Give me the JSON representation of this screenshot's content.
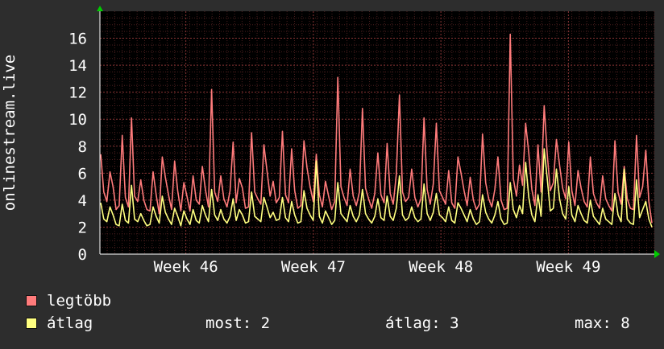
{
  "chart_data": {
    "type": "line",
    "ylabel": "onlinestream.live",
    "ylim": [
      0,
      18
    ],
    "yticks": [
      0,
      2,
      4,
      6,
      8,
      10,
      12,
      14,
      16
    ],
    "xlim": [
      0,
      100
    ],
    "x_ticks": [
      {
        "label": "Week 46",
        "x": 15.5
      },
      {
        "label": "Week 47",
        "x": 38.5
      },
      {
        "label": "Week 48",
        "x": 61.5
      },
      {
        "label": "Week 49",
        "x": 84.5
      }
    ],
    "grid": true,
    "series": [
      {
        "name": "legtöbb",
        "color": "#ff7b7b",
        "values": [
          7.4,
          4.6,
          3.9,
          6.1,
          5.0,
          3.3,
          3.6,
          8.8,
          4.2,
          3.5,
          10.1,
          4.3,
          3.9,
          5.5,
          4.0,
          3.3,
          3.2,
          6.1,
          4.4,
          3.0,
          7.2,
          5.7,
          4.4,
          3.3,
          6.9,
          4.7,
          3.2,
          5.3,
          4.3,
          3.2,
          5.8,
          4.0,
          3.7,
          6.5,
          4.8,
          3.5,
          12.2,
          4.6,
          3.9,
          5.8,
          4.1,
          3.5,
          4.7,
          8.3,
          3.8,
          5.6,
          4.9,
          3.4,
          3.5,
          9.0,
          4.6,
          4.1,
          3.7,
          8.1,
          6.2,
          4.3,
          5.4,
          3.8,
          4.2,
          9.1,
          4.4,
          3.8,
          7.8,
          4.7,
          3.4,
          3.6,
          8.4,
          6.4,
          5.0,
          3.9,
          7.4,
          4.4,
          3.5,
          5.4,
          4.3,
          3.3,
          3.9,
          13.1,
          5.0,
          4.2,
          3.6,
          6.3,
          4.3,
          3.6,
          4.6,
          10.8,
          4.9,
          4.1,
          3.4,
          4.5,
          7.5,
          4.4,
          3.8,
          8.2,
          4.5,
          3.7,
          5.9,
          11.8,
          4.6,
          3.9,
          4.2,
          6.3,
          4.2,
          3.5,
          4.1,
          10.1,
          4.8,
          3.7,
          5.2,
          9.7,
          4.7,
          4.2,
          3.7,
          6.2,
          3.8,
          3.4,
          7.2,
          6.0,
          4.7,
          3.6,
          5.7,
          4.0,
          3.3,
          3.7,
          8.9,
          5.3,
          4.1,
          3.5,
          4.8,
          7.2,
          4.0,
          3.3,
          3.4,
          16.3,
          5.6,
          4.3,
          6.6,
          5.1,
          9.7,
          7.5,
          4.8,
          3.6,
          8.1,
          4.6,
          11.0,
          7.4,
          4.7,
          5.3,
          8.5,
          6.6,
          4.9,
          4.1,
          8.3,
          4.7,
          3.6,
          6.2,
          4.9,
          3.9,
          3.5,
          7.2,
          4.5,
          3.8,
          3.4,
          5.8,
          4.1,
          3.6,
          3.2,
          8.4,
          4.6,
          3.7,
          6.5,
          4.1,
          3.4,
          3.3,
          8.8,
          4.2,
          5.0,
          7.7,
          3.9,
          2.3
        ]
      },
      {
        "name": "átlag",
        "color": "#ffff80",
        "values": [
          3.8,
          2.6,
          2.4,
          3.5,
          2.9,
          2.2,
          2.1,
          3.7,
          2.5,
          2.3,
          5.1,
          2.6,
          2.4,
          3.0,
          2.5,
          2.1,
          2.2,
          3.5,
          2.8,
          2.3,
          4.3,
          3.1,
          2.6,
          2.2,
          3.4,
          2.8,
          2.1,
          3.2,
          2.6,
          2.2,
          3.3,
          2.5,
          2.3,
          3.6,
          2.9,
          2.4,
          4.8,
          2.9,
          2.5,
          3.3,
          2.6,
          2.3,
          2.8,
          4.1,
          2.5,
          3.3,
          2.9,
          2.3,
          2.4,
          4.6,
          2.8,
          2.6,
          2.4,
          4.2,
          3.5,
          2.7,
          3.1,
          2.5,
          2.6,
          4.2,
          2.7,
          2.4,
          3.9,
          2.9,
          2.3,
          2.4,
          4.7,
          3.4,
          2.9,
          2.5,
          6.9,
          2.8,
          2.3,
          3.2,
          2.7,
          2.2,
          2.5,
          5.3,
          3.0,
          2.7,
          2.4,
          3.6,
          2.8,
          2.4,
          2.9,
          4.8,
          3.0,
          2.6,
          2.3,
          2.8,
          4.1,
          2.7,
          2.5,
          4.3,
          2.8,
          2.5,
          3.4,
          5.8,
          2.9,
          2.5,
          2.7,
          3.5,
          2.7,
          2.4,
          2.6,
          5.2,
          3.0,
          2.5,
          3.1,
          4.5,
          2.9,
          2.7,
          2.4,
          3.5,
          2.5,
          2.3,
          3.8,
          3.4,
          2.9,
          2.4,
          3.3,
          2.6,
          2.2,
          2.4,
          4.4,
          3.1,
          2.6,
          2.3,
          2.9,
          3.9,
          2.6,
          2.2,
          2.3,
          5.3,
          3.3,
          2.7,
          3.6,
          3.0,
          6.8,
          4.2,
          2.9,
          2.4,
          4.4,
          2.8,
          7.8,
          5.6,
          3.2,
          3.4,
          6.3,
          4.1,
          3.0,
          2.6,
          5.0,
          2.9,
          2.4,
          3.6,
          3.0,
          2.5,
          2.3,
          4.0,
          2.8,
          2.5,
          2.2,
          3.4,
          2.6,
          2.4,
          2.2,
          4.5,
          2.9,
          2.4,
          6.3,
          2.6,
          2.3,
          2.2,
          5.5,
          2.7,
          3.3,
          3.9,
          2.6,
          2.0
        ]
      }
    ]
  },
  "legend": {
    "series_1": "legtöbb",
    "series_2": "átlag",
    "now": "most: 2",
    "avg": "átlag: 3",
    "max": "max: 8"
  }
}
